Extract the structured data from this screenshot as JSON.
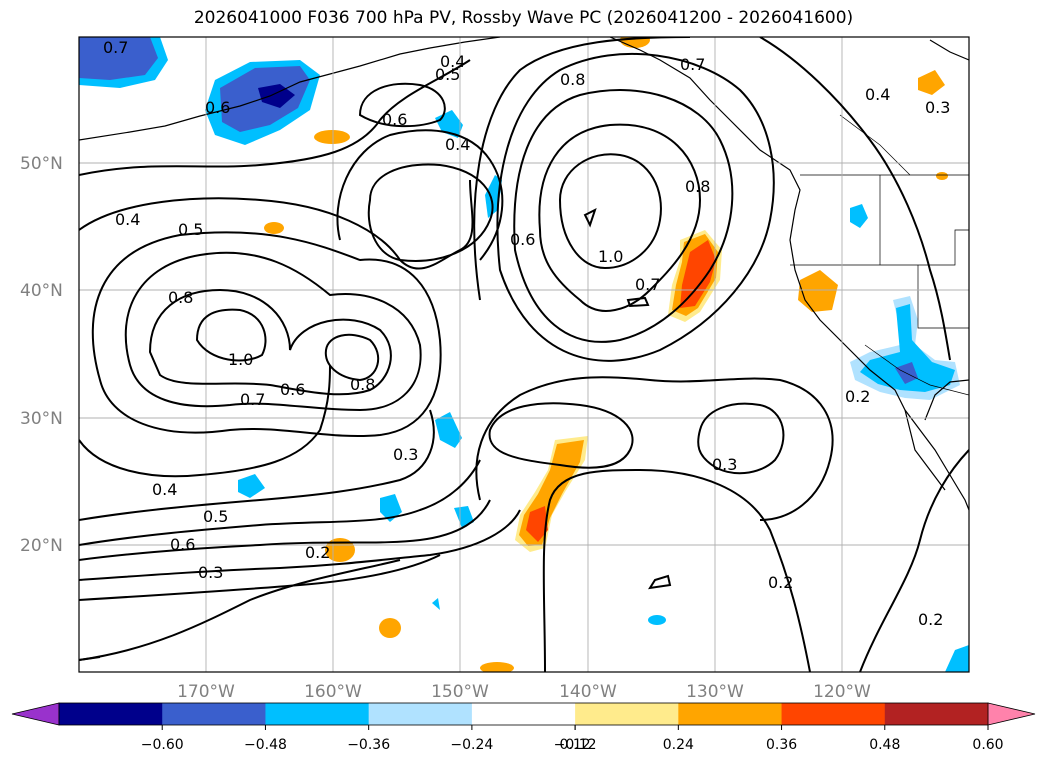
{
  "title": "2026041000 F036 700 hPa PV, Rossby Wave PC (2026041200 - 2026041600)",
  "lat_labels": [
    "50°N",
    "40°N",
    "30°N",
    "20°N"
  ],
  "lon_labels": [
    "170°W",
    "160°W",
    "150°W",
    "140°W",
    "130°W",
    "120°W"
  ],
  "contour_labels": [
    "0.7",
    "0.6",
    "0.4",
    "0.5",
    "0.8",
    "0.7",
    "0.4",
    "0.3",
    "0.6",
    "0.4",
    "0.8",
    "0.4",
    "0.5",
    "0.6",
    "1.0",
    "0.8",
    "0.7",
    "1.0",
    "0.7",
    "0.6",
    "0.8",
    "0.2",
    "0.3",
    "0.3",
    "0.4",
    "0.5",
    "0.6",
    "0.2",
    "0.3",
    "0.2",
    "0.2"
  ],
  "colorbar": {
    "ticks": [
      "−0.60",
      "−0.48",
      "−0.36",
      "−0.24",
      "−0.12",
      "0.12",
      "0.24",
      "0.36",
      "0.48",
      "0.60"
    ],
    "colors": [
      "#9932cc",
      "#00008b",
      "#3a5fcd",
      "#00bfff",
      "#b0e2ff",
      "#ffffff",
      "#ffeb8c",
      "#ffa500",
      "#ff4500",
      "#b22222",
      "#ff82ab"
    ]
  },
  "fill_colors": {
    "pos_light": "#ffeb8c",
    "pos_mid": "#ffa500",
    "pos_strong": "#ff4500",
    "neg_light": "#b0e2ff",
    "neg_mid": "#00bfff",
    "neg_strong": "#3a5fcd",
    "neg_max": "#00008b"
  }
}
